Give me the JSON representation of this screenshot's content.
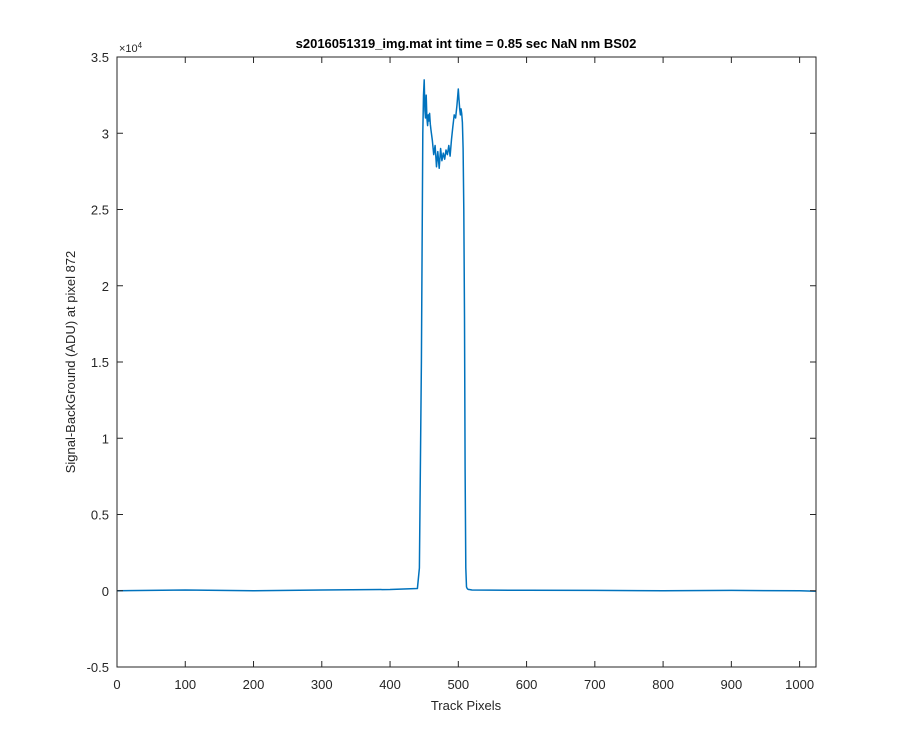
{
  "chart_data": {
    "type": "line",
    "title": "s2016051319_img.mat int time = 0.85 sec  NaN nm BS02",
    "xlabel": "Track Pixels",
    "ylabel": "Signal-BackGround (ADU) at pixel 872",
    "xlim": [
      0,
      1024
    ],
    "ylim": [
      -5000,
      35000
    ],
    "x_ticks": [
      0,
      100,
      200,
      300,
      400,
      500,
      600,
      700,
      800,
      900,
      1000
    ],
    "y_ticks": [
      -0.5,
      0,
      0.5,
      1,
      1.5,
      2,
      2.5,
      3,
      3.5
    ],
    "y_multiplier_base": "×10",
    "y_multiplier_exp": "4",
    "grid": false,
    "line_color": "#0072bd",
    "series": [
      {
        "x": [
          0,
          100,
          200,
          300,
          400,
          440,
          443,
          446,
          448,
          449,
          450,
          451,
          452,
          453,
          454,
          455,
          456,
          457,
          458,
          459,
          460,
          462,
          464,
          466,
          468,
          470,
          472,
          474,
          476,
          478,
          480,
          482,
          484,
          486,
          488,
          490,
          492,
          494,
          496,
          498,
          500,
          501,
          502,
          503,
          504,
          505,
          506,
          507,
          508,
          509,
          510,
          511,
          512,
          513,
          514,
          515,
          516,
          520,
          600,
          700,
          800,
          900,
          1000,
          1024
        ],
        "y": [
          0,
          50,
          0,
          50,
          80,
          150,
          1500,
          15000,
          30000,
          32500,
          33500,
          31500,
          31000,
          32500,
          31000,
          30500,
          31200,
          30800,
          31300,
          30600,
          30200,
          29500,
          28600,
          29200,
          27800,
          28800,
          27700,
          29000,
          28200,
          28700,
          28300,
          28900,
          28600,
          29200,
          28500,
          29600,
          30400,
          31200,
          31000,
          31800,
          32900,
          32200,
          31600,
          31200,
          31600,
          31300,
          30700,
          29000,
          25000,
          18000,
          8000,
          1500,
          250,
          150,
          100,
          80,
          80,
          50,
          30,
          20,
          0,
          20,
          0,
          -30
        ]
      }
    ]
  }
}
